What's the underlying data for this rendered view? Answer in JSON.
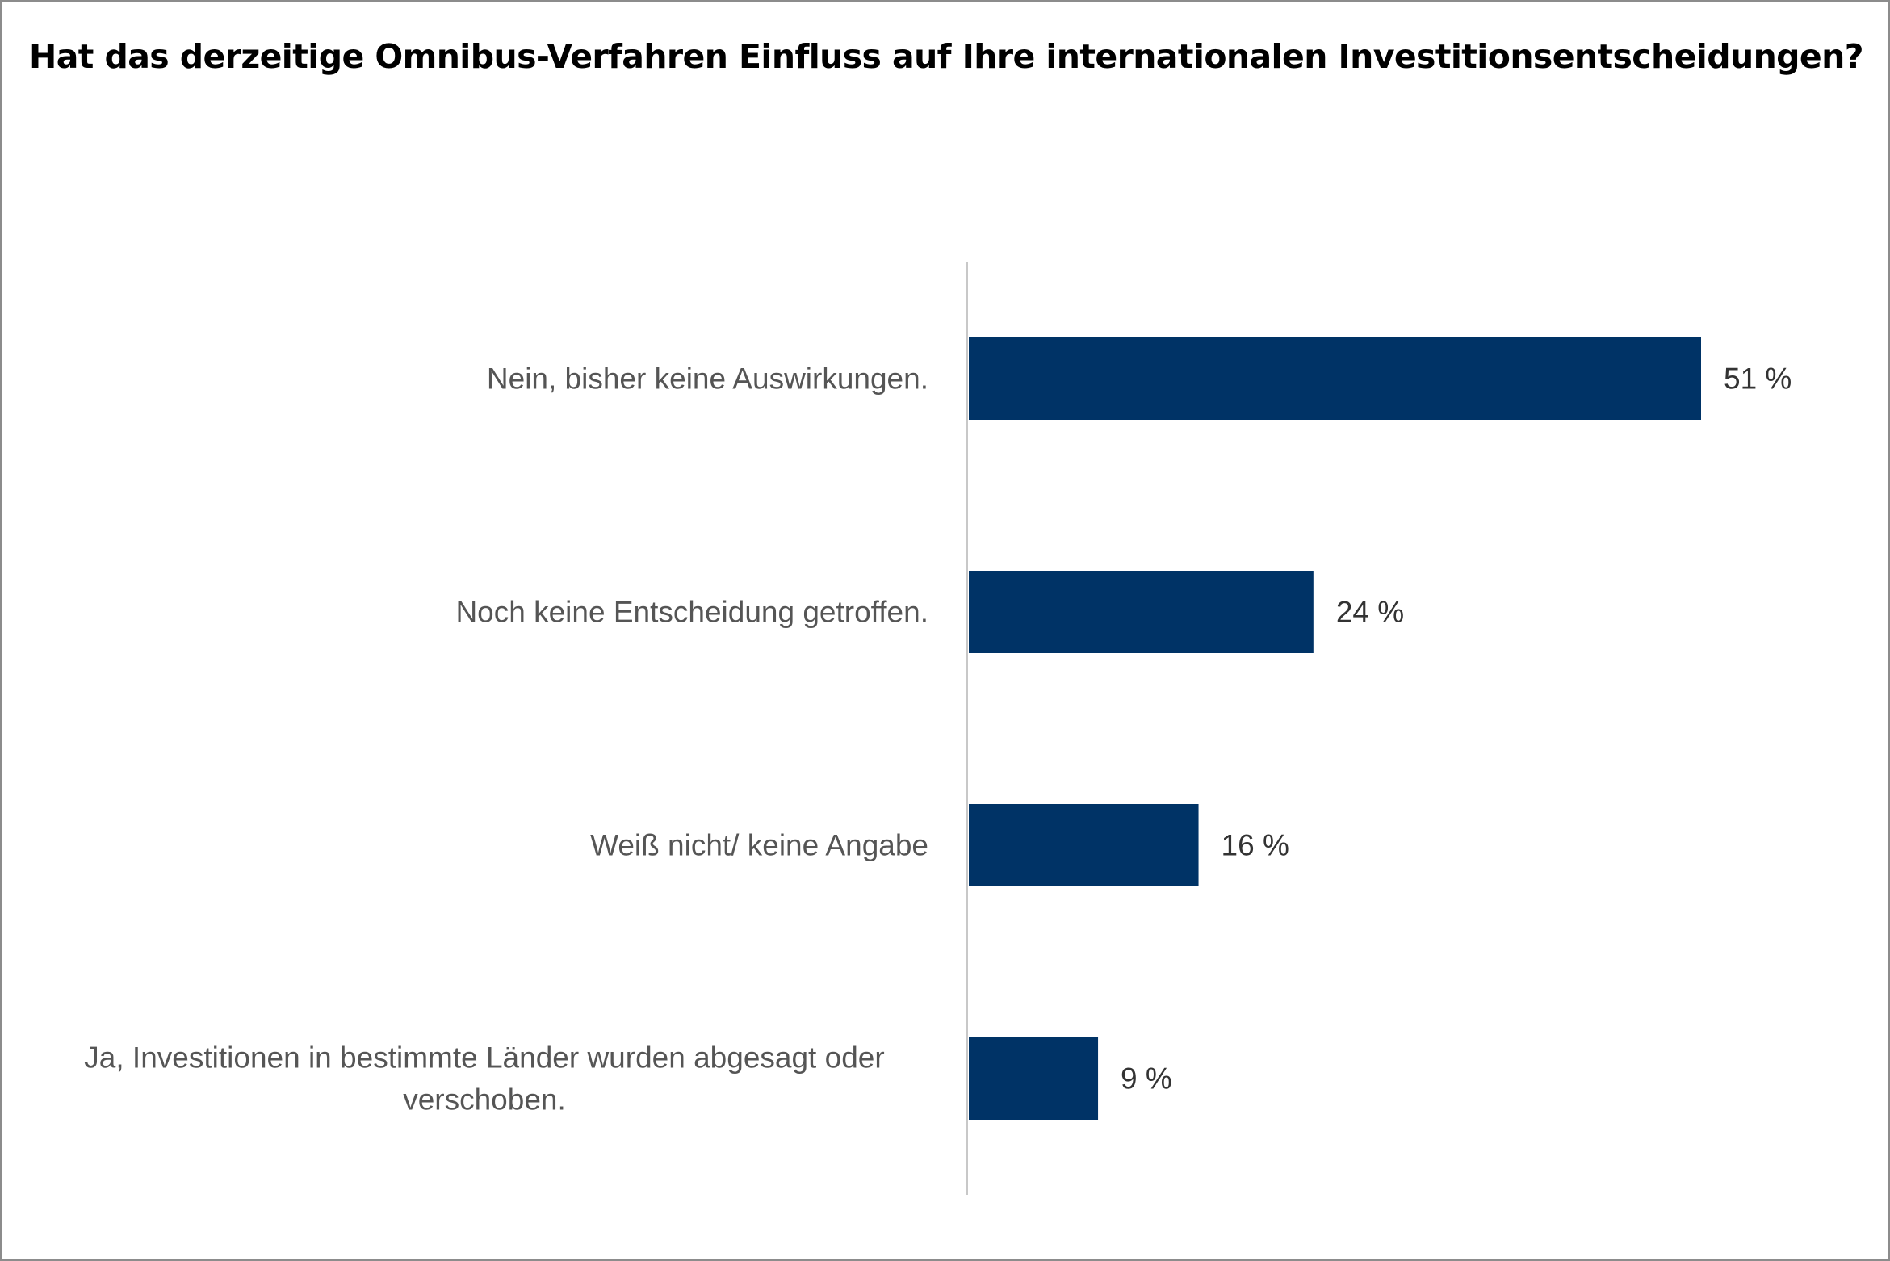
{
  "chart_data": {
    "type": "bar",
    "orientation": "horizontal",
    "title": "Hat das derzeitige Omnibus-Verfahren Einfluss auf Ihre internationalen Investitionsentscheidungen?",
    "categories": [
      "Nein, bisher keine Auswirkungen.",
      "Noch keine Entscheidung getroffen.",
      "Weiß nicht/ keine Angabe",
      "Ja, Investitionen in bestimmte Länder wurden abgesagt oder verschoben."
    ],
    "category_lines": [
      [
        "Nein, bisher keine Auswirkungen."
      ],
      [
        "Noch keine Entscheidung getroffen."
      ],
      [
        "Weiß nicht/ keine Angabe"
      ],
      [
        "Ja, Investitionen in bestimmte Länder wurden abgesagt oder",
        "verschoben."
      ]
    ],
    "values": [
      51,
      24,
      16,
      9
    ],
    "value_labels": [
      "51 %",
      "24 %",
      "16 %",
      "9 %"
    ],
    "unit": "%",
    "xlim": [
      0,
      60
    ],
    "grid": false,
    "legend": "none",
    "colors": {
      "bar": "#003366",
      "axis_line": "#c8c8c8",
      "category_text": "#555555",
      "value_text": "#333333",
      "frame": "#8c8c8c"
    }
  }
}
